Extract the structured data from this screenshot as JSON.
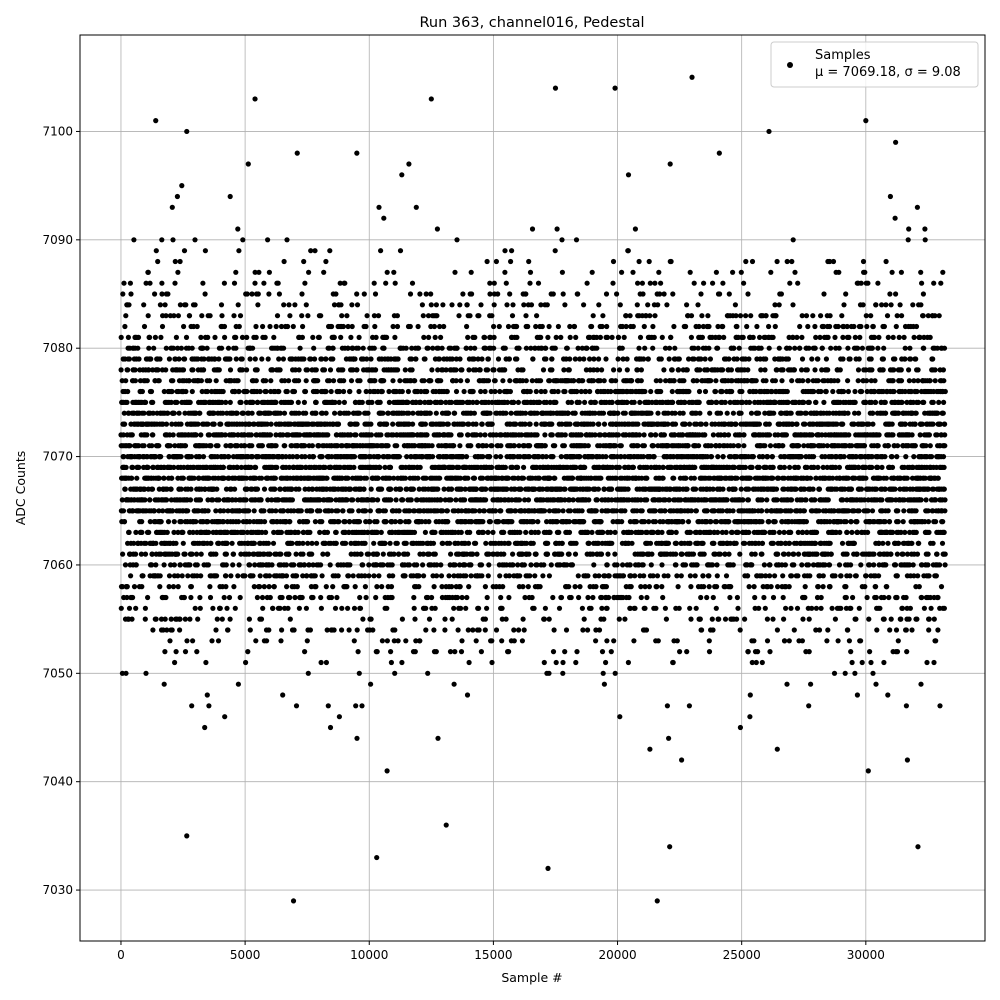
{
  "chart_data": {
    "type": "scatter",
    "title": "Run 363, channel016, Pedestal",
    "xlabel": "Sample #",
    "ylabel": "ADC Counts",
    "xlim": [
      -1650,
      34800
    ],
    "ylim": [
      7025.3,
      7108.9
    ],
    "xticks": [
      0,
      5000,
      10000,
      15000,
      20000,
      25000,
      30000
    ],
    "yticks": [
      7030,
      7040,
      7050,
      7060,
      7070,
      7080,
      7090,
      7100
    ],
    "grid": true,
    "legend": {
      "placement": "top-right",
      "entries": [
        "Samples",
        "μ = 7069.18, σ = 9.08"
      ]
    },
    "series": [
      {
        "name": "Samples",
        "color": "#000000",
        "marker": "circle",
        "mean": 7069.18,
        "sigma": 9.08,
        "notable_points": [
          [
            1400,
            7101
          ],
          [
            2650,
            7100
          ],
          [
            2650,
            7035
          ],
          [
            5400,
            7103
          ],
          [
            6950,
            7029
          ],
          [
            10300,
            7033
          ],
          [
            12500,
            7103
          ],
          [
            13100,
            7036
          ],
          [
            17200,
            7032
          ],
          [
            17500,
            7104
          ],
          [
            19900,
            7104
          ],
          [
            23000,
            7105
          ],
          [
            21600,
            7029
          ],
          [
            22100,
            7034
          ],
          [
            30000,
            7101
          ],
          [
            30100,
            7041
          ],
          [
            31200,
            7099
          ],
          [
            32100,
            7034
          ],
          [
            24100,
            7098
          ],
          [
            26100,
            7100
          ],
          [
            9500,
            7098
          ],
          [
            7100,
            7098
          ]
        ]
      }
    ]
  }
}
